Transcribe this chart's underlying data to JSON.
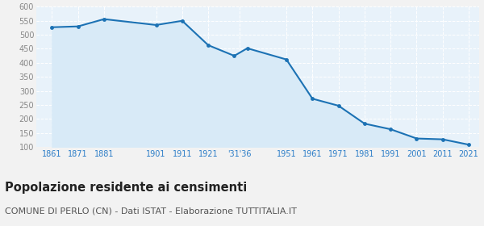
{
  "years": [
    1861,
    1871,
    1881,
    1901,
    1911,
    1921,
    1931,
    1936,
    1951,
    1961,
    1971,
    1981,
    1991,
    2001,
    2011,
    2021
  ],
  "population": [
    527,
    530,
    556,
    535,
    550,
    463,
    425,
    452,
    412,
    272,
    247,
    183,
    163,
    130,
    127,
    108
  ],
  "ylim": [
    100,
    600
  ],
  "xlim_left": 1855,
  "xlim_right": 2025,
  "line_color": "#1c72b4",
  "fill_color": "#d8eaf7",
  "marker_color": "#1c72b4",
  "background_color": "#f2f2f2",
  "plot_bg_color": "#e8f2fa",
  "grid_color": "#ffffff",
  "title": "Popolazione residente ai censimenti",
  "subtitle": "COMUNE DI PERLO (CN) - Dati ISTAT - Elaborazione TUTTITALIA.IT",
  "title_fontsize": 10.5,
  "subtitle_fontsize": 8,
  "tick_label_color": "#2a7cc7",
  "ytick_label_color": "#888888",
  "xtick_positions": [
    1861,
    1871,
    1881,
    1901,
    1911,
    1921,
    1933,
    1951,
    1961,
    1971,
    1981,
    1991,
    2001,
    2011,
    2021
  ],
  "xtick_labels": [
    "1861",
    "1871",
    "1881",
    "1901",
    "1911",
    "1921",
    "'31'36",
    "1951",
    "1961",
    "1971",
    "1981",
    "1991",
    "2001",
    "2011",
    "2021"
  ]
}
